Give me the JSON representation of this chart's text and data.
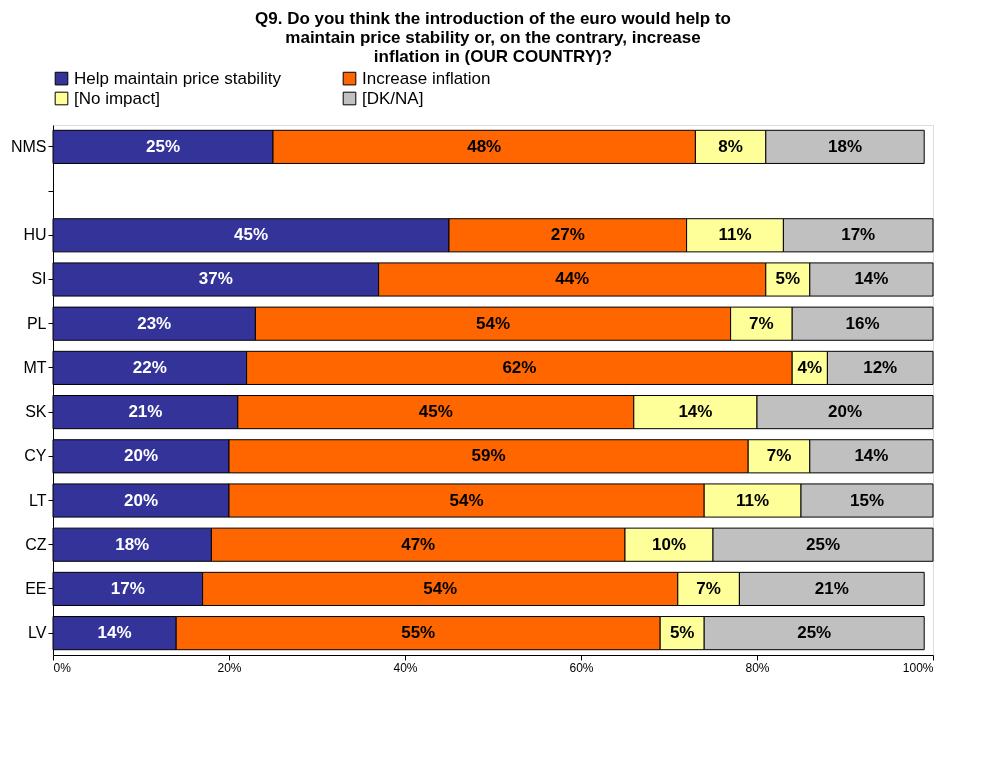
{
  "chart_data": {
    "type": "bar",
    "orientation": "horizontal",
    "stacked": true,
    "title": "Q9. Do you think the introduction of the euro would help to maintain price stability or, on the contrary, increase inflation in (OUR COUNTRY)?",
    "categories": [
      "NMS",
      null,
      "HU",
      "SI",
      "PL",
      "MT",
      "SK",
      "CY",
      "LT",
      "CZ",
      "EE",
      "LV"
    ],
    "series": [
      {
        "name": "Help maintain price stability",
        "color": "#333399",
        "values": [
          25,
          null,
          45,
          37,
          23,
          22,
          21,
          20,
          20,
          18,
          17,
          14
        ],
        "value_labels": [
          "25%",
          null,
          "45%",
          "37%",
          "23%",
          "22%",
          "21%",
          "20%",
          "20%",
          "18%",
          "17%",
          "14%"
        ]
      },
      {
        "name": "Increase inflation",
        "color": "#ff6600",
        "values": [
          48,
          null,
          27,
          44,
          54,
          62,
          45,
          59,
          54,
          47,
          54,
          55
        ],
        "value_labels": [
          "48%",
          null,
          "27%",
          "44%",
          "54%",
          "62%",
          "45%",
          "59%",
          "54%",
          "47%",
          "54%",
          "55%"
        ]
      },
      {
        "name": "[No impact]",
        "color": "#ffff99",
        "values": [
          8,
          null,
          11,
          5,
          7,
          4,
          14,
          7,
          11,
          10,
          7,
          5
        ],
        "value_labels": [
          "8%",
          null,
          "11%",
          "5%",
          "7%",
          "4%",
          "14%",
          "7%",
          "11%",
          "10%",
          "7%",
          "5%"
        ]
      },
      {
        "name": "[DK/NA]",
        "color": "#c0c0c0",
        "values": [
          18,
          null,
          17,
          14,
          16,
          12,
          20,
          14,
          15,
          25,
          21,
          25
        ],
        "value_labels": [
          "18%",
          null,
          "17%",
          "14%",
          "16%",
          "12%",
          "20%",
          "14%",
          "15%",
          "25%",
          "21%",
          "25%"
        ]
      }
    ],
    "xlim": [
      0,
      100
    ],
    "xticks": [
      {
        "value": 0,
        "label": "0%"
      },
      {
        "value": 20,
        "label": "20%"
      },
      {
        "value": 40,
        "label": "40%"
      },
      {
        "value": 60,
        "label": "60%"
      },
      {
        "value": 80,
        "label": "80%"
      },
      {
        "value": 100,
        "label": "100%"
      }
    ],
    "legend": "top",
    "grid": false
  }
}
